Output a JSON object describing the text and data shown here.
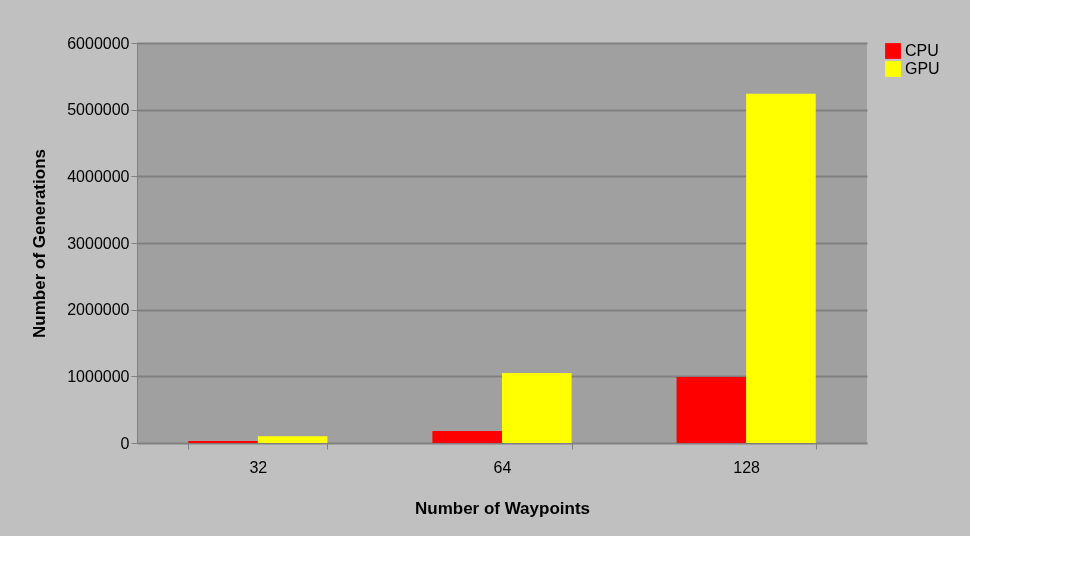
{
  "chart_data": {
    "type": "bar",
    "xlabel": "Number of Waypoints",
    "ylabel": "Number of Generations",
    "categories": [
      "32",
      "64",
      "128"
    ],
    "series": [
      {
        "name": "CPU",
        "color": "#ff0000",
        "values": [
          30000,
          180000,
          990000
        ]
      },
      {
        "name": "GPU",
        "color": "#ffff00",
        "values": [
          100000,
          1050000,
          5240000
        ]
      }
    ],
    "ylim": [
      0,
      6000000
    ],
    "yticks": [
      0,
      1000000,
      2000000,
      3000000,
      4000000,
      5000000,
      6000000
    ],
    "grid": "y",
    "legend": "right"
  }
}
